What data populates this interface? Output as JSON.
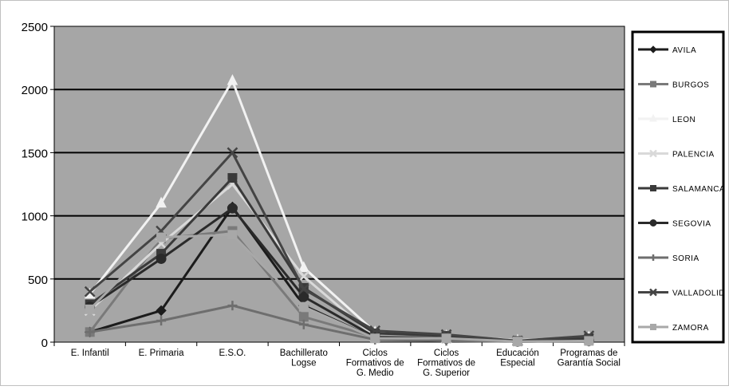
{
  "chart_data": {
    "type": "line",
    "title": "",
    "xlabel": "",
    "ylabel": "",
    "ylim": [
      0,
      2500
    ],
    "yticks": [
      0,
      500,
      1000,
      1500,
      2000,
      2500
    ],
    "grid": true,
    "legend_position": "right",
    "categories": [
      [
        "E. Infantil"
      ],
      [
        "E. Primaria"
      ],
      [
        "E.S.O."
      ],
      [
        "Bachillerato",
        "Logse"
      ],
      [
        "Ciclos",
        "Formativos de",
        "G. Medio"
      ],
      [
        "Ciclos",
        "Formativos de",
        "G. Superior"
      ],
      [
        "Educación",
        "Especial"
      ],
      [
        "Programas de",
        "Garantía Social"
      ]
    ],
    "series": [
      {
        "name": "AVILA",
        "color": "#1c1c1c",
        "marker": "diamond",
        "values": [
          80,
          250,
          1070,
          290,
          30,
          20,
          5,
          10
        ]
      },
      {
        "name": "BURGOS",
        "color": "#7a7a7a",
        "marker": "square",
        "values": [
          80,
          820,
          880,
          200,
          40,
          40,
          10,
          30
        ]
      },
      {
        "name": "LEON",
        "color": "#f2f2f2",
        "marker": "triangle",
        "values": [
          380,
          1100,
          2070,
          590,
          80,
          50,
          15,
          40
        ]
      },
      {
        "name": "PALENCIA",
        "color": "#d9d9d9",
        "marker": "x",
        "values": [
          250,
          780,
          1250,
          520,
          40,
          30,
          10,
          20
        ]
      },
      {
        "name": "SALAMANCA",
        "color": "#3a3a3a",
        "marker": "square",
        "values": [
          300,
          700,
          1300,
          430,
          70,
          50,
          10,
          30
        ]
      },
      {
        "name": "SEGOVIA",
        "color": "#2a2a2a",
        "marker": "circle",
        "values": [
          280,
          660,
          1060,
          360,
          40,
          30,
          5,
          10
        ]
      },
      {
        "name": "SORIA",
        "color": "#6e6e6e",
        "marker": "plus",
        "values": [
          80,
          170,
          290,
          140,
          20,
          10,
          5,
          5
        ]
      },
      {
        "name": "VALLADOLID",
        "color": "#444444",
        "marker": "x",
        "values": [
          400,
          880,
          1500,
          420,
          90,
          60,
          10,
          50
        ]
      },
      {
        "name": "ZAMORA",
        "color": "#a8a8a8",
        "marker": "square",
        "values": [
          260,
          830,
          850,
          280,
          30,
          30,
          5,
          10
        ]
      }
    ]
  }
}
